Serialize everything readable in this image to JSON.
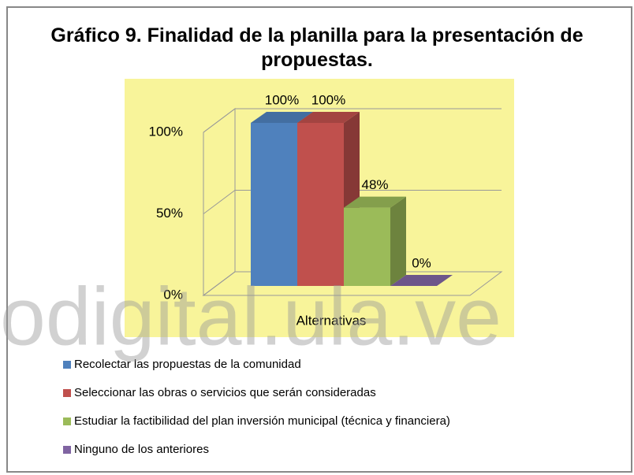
{
  "chart_data": {
    "type": "bar",
    "title": "Gráfico 9. Finalidad de la planilla para la presentación de propuestas.",
    "x_label": "Alternativas",
    "series": [
      {
        "name": "Recolectar las propuestas de la comunidad",
        "color": "#4f81bd",
        "values": [
          100
        ],
        "value_labels": [
          "100%"
        ]
      },
      {
        "name": "Seleccionar las obras o servicios que serán consideradas",
        "color": "#c0504d",
        "values": [
          100
        ],
        "value_labels": [
          "100%"
        ]
      },
      {
        "name": "Estudiar la factibilidad del plan inversión municipal (técnica y financiera)",
        "color": "#9bbb59",
        "values": [
          48
        ],
        "value_labels": [
          "48%"
        ]
      },
      {
        "name": "Ninguno de los anteriores",
        "color": "#8064a2",
        "values": [
          0
        ],
        "value_labels": [
          "0%"
        ]
      }
    ],
    "ylim": [
      0,
      100
    ],
    "yticks": [
      {
        "value": 0,
        "label": "0%"
      },
      {
        "value": 50,
        "label": "50%"
      },
      {
        "value": 100,
        "label": "100%"
      }
    ],
    "grid": true,
    "watermark": "odigital.ula.ve"
  }
}
